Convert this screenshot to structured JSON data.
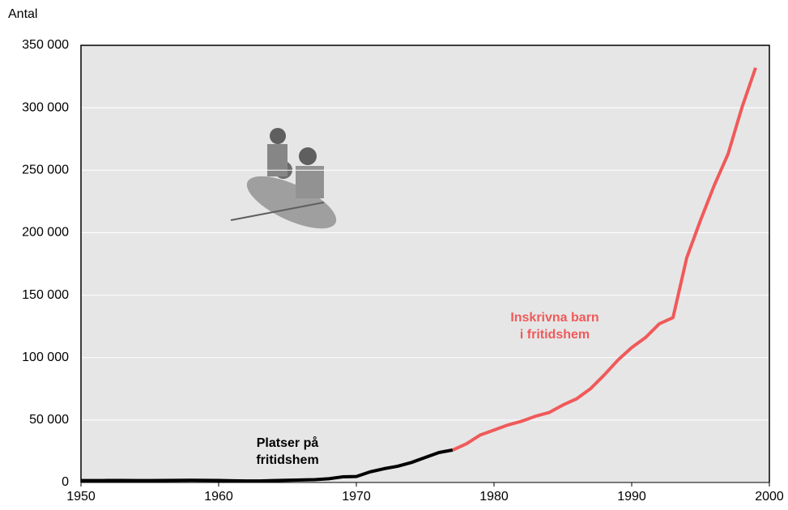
{
  "chart_data": {
    "type": "line",
    "y_label": "Antal",
    "x": [
      1950,
      1951,
      1952,
      1953,
      1954,
      1955,
      1956,
      1957,
      1958,
      1959,
      1960,
      1961,
      1962,
      1963,
      1964,
      1965,
      1966,
      1967,
      1968,
      1969,
      1970,
      1971,
      1972,
      1973,
      1974,
      1975,
      1976,
      1977,
      1978,
      1979,
      1980,
      1981,
      1982,
      1983,
      1984,
      1985,
      1986,
      1987,
      1988,
      1989,
      1990,
      1991,
      1992,
      1993,
      1994,
      1995,
      1996,
      1997,
      1998,
      1999
    ],
    "series": [
      {
        "name": "Platser på fritidshem",
        "label_lines": [
          "Platser på",
          "fritidshem"
        ],
        "color": "#000000",
        "values": [
          1500,
          1500,
          1600,
          1600,
          1500,
          1500,
          1600,
          1700,
          1800,
          1700,
          1600,
          1400,
          1200,
          1200,
          1500,
          1800,
          2000,
          2300,
          3000,
          4500,
          4800,
          8500,
          11000,
          13000,
          16000,
          20000,
          24000,
          26000,
          null,
          null,
          null,
          null,
          null,
          null,
          null,
          null,
          null,
          null,
          null,
          null,
          null,
          null,
          null,
          null,
          null,
          null,
          null,
          null,
          null,
          null
        ]
      },
      {
        "name": "Inskrivna barn i fritidshem",
        "label_lines": [
          "Inskrivna barn",
          "i fritidshem"
        ],
        "color": "#f05a5a",
        "values": [
          null,
          null,
          null,
          null,
          null,
          null,
          null,
          null,
          null,
          null,
          null,
          null,
          null,
          null,
          null,
          null,
          null,
          null,
          null,
          null,
          null,
          null,
          null,
          null,
          null,
          null,
          null,
          26000,
          31000,
          38000,
          42000,
          46000,
          49000,
          53000,
          56000,
          62000,
          67000,
          75000,
          86000,
          98000,
          108000,
          116000,
          127000,
          132000,
          180000,
          210000,
          238000,
          263000,
          300000,
          332000
        ]
      }
    ],
    "xlim": [
      1950,
      2000
    ],
    "xticks": [
      1950,
      1960,
      1970,
      1980,
      1990,
      2000
    ],
    "ylim": [
      0,
      350000
    ],
    "yticks": [
      0,
      {
        "value": 50000,
        "label": "50 000"
      },
      {
        "value": 100000,
        "label": "100 000"
      },
      {
        "value": 150000,
        "label": "150 000"
      },
      {
        "value": 200000,
        "label": "200 000"
      },
      {
        "value": 250000,
        "label": "250 000"
      },
      {
        "value": 300000,
        "label": "300 000"
      },
      {
        "value": 350000,
        "label": "350 000"
      }
    ],
    "grid": true
  }
}
